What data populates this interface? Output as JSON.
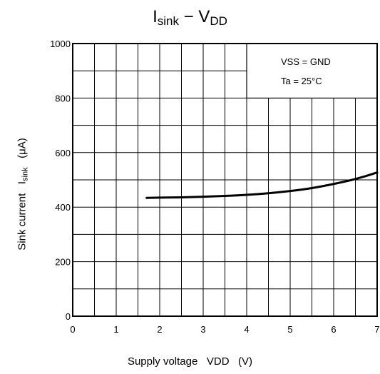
{
  "chart_data": {
    "type": "line",
    "title_main": "I",
    "title_sub1": "sink",
    "title_mid": " − V",
    "title_sub2": "DD",
    "xlabel_main": "Supply voltage",
    "xlabel_sym": "VDD",
    "xlabel_unit": "(V)",
    "ylabel_main": "Sink current",
    "ylabel_sym": "I",
    "ylabel_sub": "sink",
    "ylabel_unit": "(μA)",
    "xlim": [
      0,
      7
    ],
    "ylim": [
      0,
      1000
    ],
    "x_ticks": [
      0,
      1,
      2,
      3,
      4,
      5,
      6,
      7
    ],
    "y_ticks": [
      0,
      200,
      400,
      600,
      800,
      1000
    ],
    "grid": true,
    "annotations": [
      "VSS = GND",
      "Ta = 25°C"
    ],
    "series": [
      {
        "x": [
          1.7,
          2.0,
          2.5,
          3.0,
          3.5,
          4.0,
          4.5,
          5.0,
          5.5,
          6.0,
          6.5,
          7.0
        ],
        "y": [
          434,
          435,
          436,
          438,
          441,
          445,
          451,
          459,
          470,
          485,
          503,
          527
        ]
      }
    ]
  }
}
